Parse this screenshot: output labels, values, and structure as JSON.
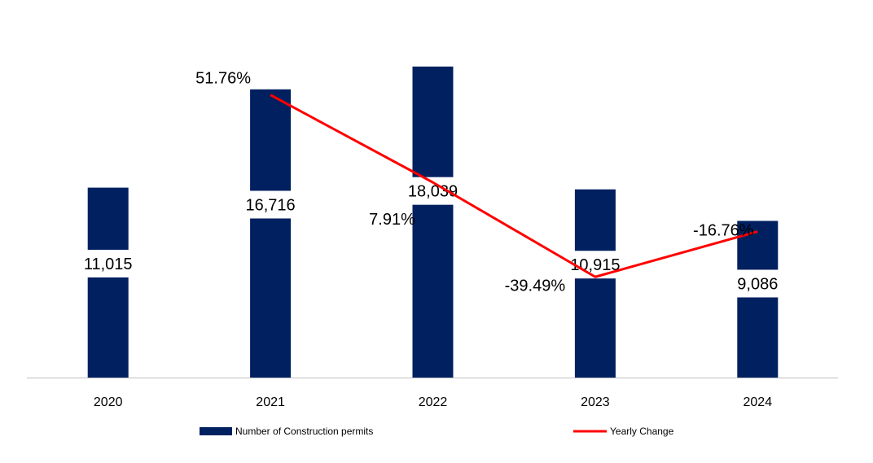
{
  "chart_data": {
    "type": "bar",
    "title": "",
    "xlabel": "",
    "ylabel": "",
    "categories": [
      "2020",
      "2021",
      "2022",
      "2023",
      "2024"
    ],
    "series": [
      {
        "name": "Number of Construction permits",
        "type": "bar",
        "values": [
          11015,
          16716,
          18039,
          10915,
          9086
        ],
        "labels": [
          "11,015",
          "16,716",
          "18,039",
          "10,915",
          "9,086"
        ],
        "color": "#002060"
      },
      {
        "name": "Yearly Change",
        "type": "line",
        "x": [
          "2021",
          "2022",
          "2023",
          "2024"
        ],
        "values": [
          51.76,
          7.91,
          -39.49,
          -16.76
        ],
        "labels": [
          "51.76%",
          "7.91%",
          "-39.49%",
          "-16.76%"
        ],
        "color": "#ff0000"
      }
    ],
    "ylim": [
      0,
      18500
    ],
    "secondary_ylim": [
      -90,
      70
    ],
    "grid": false,
    "legend_position": "bottom"
  }
}
